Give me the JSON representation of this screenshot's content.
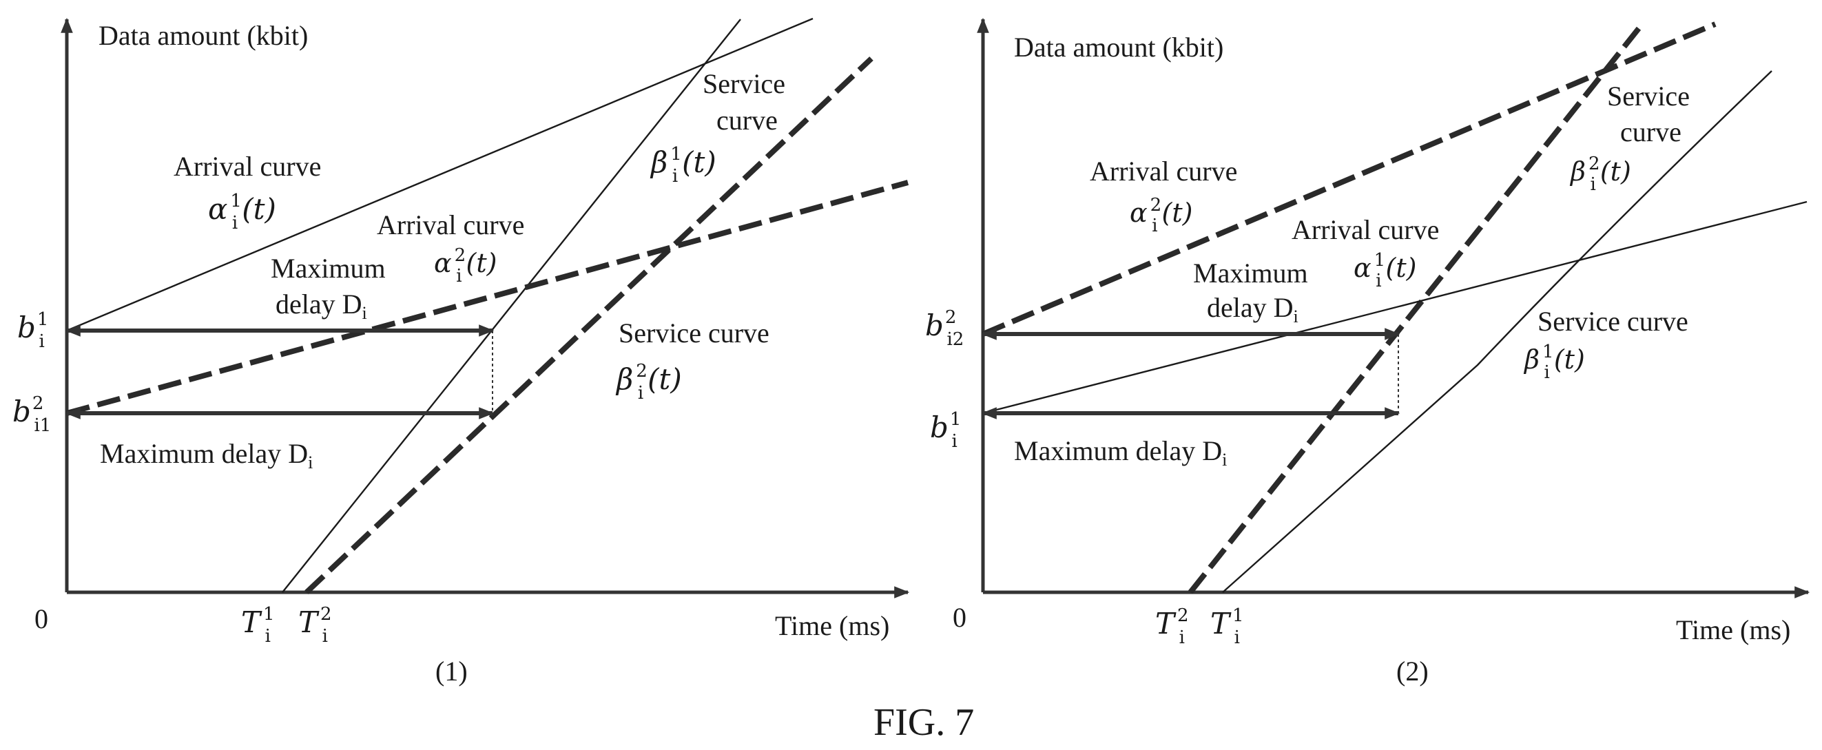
{
  "figure": {
    "caption": "FIG. 7",
    "colors": {
      "ink": "#1a1a1a",
      "background": "#ffffff"
    }
  },
  "panels": [
    {
      "caption": "(1)",
      "y_axis_label": "Data amount (kbit)",
      "x_axis_label": "Time (ms)",
      "origin_label": "0",
      "labels": {
        "arrival_1_text": "Arrival curve",
        "arrival_2_text": "Arrival curve",
        "service_1_line1": "Service",
        "service_1_line2": "curve",
        "service_2_text": "Service curve",
        "delay_top_line1": "Maximum",
        "delay_top_line2": "delay D",
        "delay_bottom": "Maximum delay D",
        "alpha_1": "α",
        "alpha_1_sup": "1",
        "alpha_1_sub": "i",
        "alpha_1_arg": "(t)",
        "alpha_2": "α",
        "alpha_2_sup": "2",
        "alpha_2_sub": "i",
        "alpha_2_arg": "(t)",
        "beta_1": "β",
        "beta_1_sup": "1",
        "beta_1_sub": "i",
        "beta_1_arg": "(t)",
        "beta_2": "β",
        "beta_2_sup": "2",
        "beta_2_sub": "i",
        "beta_2_arg": "(t)",
        "b_top": "b",
        "b_top_sup": "1",
        "b_top_sub": "i",
        "b_bottom": "b",
        "b_bottom_sup": "2",
        "b_bottom_sub": "i1",
        "t_left": "T",
        "t_left_sup": "1",
        "t_left_sub": "i",
        "t_right": "T",
        "t_right_sup": "2",
        "t_right_sub": "i",
        "delay_sub": "i"
      }
    },
    {
      "caption": "(2)",
      "y_axis_label": "Data amount (kbit)",
      "x_axis_label": "Time (ms)",
      "origin_label": "0",
      "labels": {
        "arrival_1_text": "Arrival curve",
        "arrival_2_text": "Arrival curve",
        "service_1_line1": "Service",
        "service_1_line2": "curve",
        "service_2_text": "Service curve",
        "delay_top_line1": "Maximum",
        "delay_top_line2": "delay D",
        "delay_bottom": "Maximum delay D",
        "alpha_1": "α",
        "alpha_1_sup": "2",
        "alpha_1_sub": "i",
        "alpha_1_arg": "(t)",
        "alpha_2": "α",
        "alpha_2_sup": "1",
        "alpha_2_sub": "i",
        "alpha_2_arg": "(t)",
        "beta_1": "β",
        "beta_1_sup": "2",
        "beta_1_sub": "i",
        "beta_1_arg": "(t)",
        "beta_2": "β",
        "beta_2_sup": "1",
        "beta_2_sub": "i",
        "beta_2_arg": "(t)",
        "b_top": "b",
        "b_top_sup": "2",
        "b_top_sub": "i2",
        "b_bottom": "b",
        "b_bottom_sup": "1",
        "b_bottom_sub": "i",
        "t_left": "T",
        "t_left_sup": "2",
        "t_left_sub": "i",
        "t_right": "T",
        "t_right_sup": "1",
        "t_right_sub": "i",
        "delay_sub": "i"
      }
    }
  ]
}
